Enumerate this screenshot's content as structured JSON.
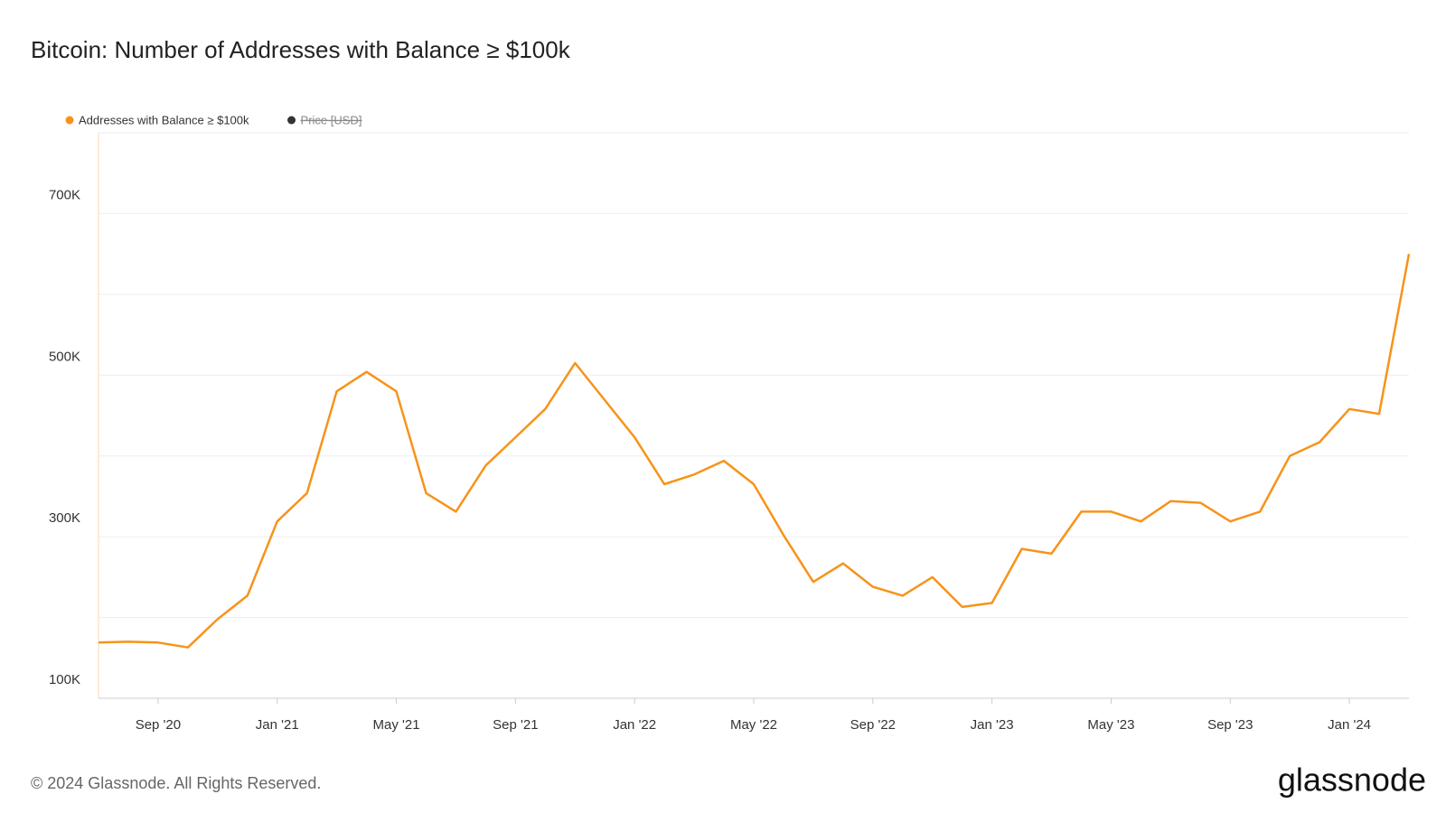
{
  "chart_data": {
    "type": "line",
    "title": "Bitcoin: Number of Addresses with Balance ≥ $100k",
    "x": [
      "2020-07",
      "2020-08",
      "2020-09",
      "2020-10",
      "2020-11",
      "2020-12",
      "2021-01",
      "2021-02",
      "2021-03",
      "2021-04",
      "2021-05",
      "2021-06",
      "2021-07",
      "2021-08",
      "2021-09",
      "2021-10",
      "2021-11",
      "2021-12",
      "2022-01",
      "2022-02",
      "2022-03",
      "2022-04",
      "2022-05",
      "2022-06",
      "2022-07",
      "2022-08",
      "2022-09",
      "2022-10",
      "2022-11",
      "2022-12",
      "2023-01",
      "2023-02",
      "2023-03",
      "2023-04",
      "2023-05",
      "2023-06",
      "2023-07",
      "2023-08",
      "2023-09",
      "2023-10",
      "2023-11",
      "2023-12",
      "2024-01",
      "2024-02",
      "2024-03"
    ],
    "series": [
      {
        "name": "Addresses with Balance ≥ $100k",
        "color": "#f7931a",
        "values": [
          169000,
          170000,
          169000,
          163000,
          198000,
          227000,
          319000,
          354000,
          480000,
          504000,
          480000,
          354000,
          331000,
          388000,
          423000,
          458000,
          515000,
          469000,
          423000,
          365000,
          377000,
          394000,
          365000,
          302000,
          244000,
          267000,
          238000,
          227000,
          250000,
          213000,
          218000,
          285000,
          279000,
          331000,
          331000,
          319000,
          344000,
          342000,
          319000,
          331000,
          400000,
          417000,
          458000,
          452000,
          650000
        ]
      },
      {
        "name": "Price [USD]",
        "color": "#333333",
        "hidden": true
      }
    ],
    "xlim": [
      "2020-07",
      "2024-03"
    ],
    "xticks": [
      {
        "value": "2020-09",
        "label": "Sep '20"
      },
      {
        "value": "2021-01",
        "label": "Jan '21"
      },
      {
        "value": "2021-05",
        "label": "May '21"
      },
      {
        "value": "2021-09",
        "label": "Sep '21"
      },
      {
        "value": "2022-01",
        "label": "Jan '22"
      },
      {
        "value": "2022-05",
        "label": "May '22"
      },
      {
        "value": "2022-09",
        "label": "Sep '22"
      },
      {
        "value": "2023-01",
        "label": "Jan '23"
      },
      {
        "value": "2023-05",
        "label": "May '23"
      },
      {
        "value": "2023-09",
        "label": "Sep '23"
      },
      {
        "value": "2024-01",
        "label": "Jan '24"
      }
    ],
    "ylim": [
      100000,
      800000
    ],
    "yticks": [
      {
        "value": 100000,
        "label": "100K"
      },
      {
        "value": 300000,
        "label": "300K"
      },
      {
        "value": 500000,
        "label": "500K"
      },
      {
        "value": 700000,
        "label": "700K"
      }
    ],
    "minor_gridlines": [
      200000,
      400000,
      600000,
      800000
    ],
    "grid": true
  },
  "footer": {
    "copyright": "© 2024 Glassnode. All Rights Reserved.",
    "logo": "glassnode"
  }
}
